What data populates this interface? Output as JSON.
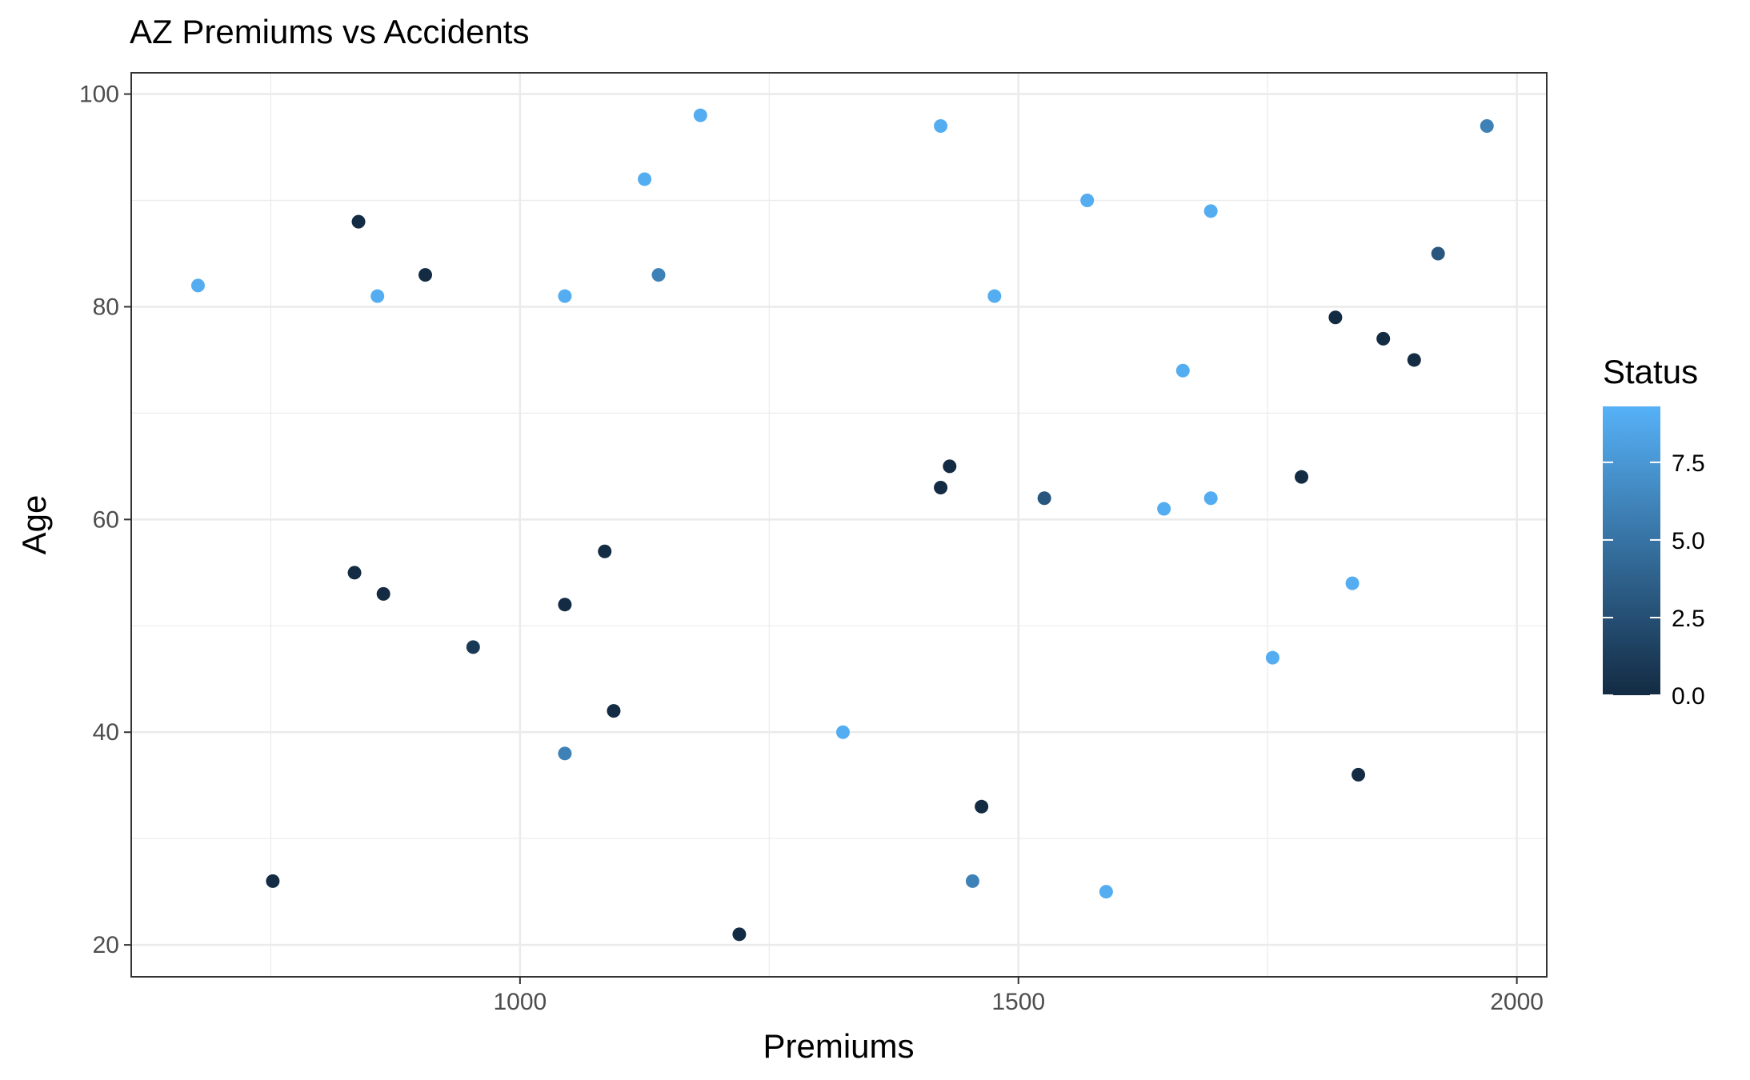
{
  "chart_data": {
    "type": "scatter",
    "title": "AZ Premiums vs Accidents",
    "xlabel": "Premiums",
    "ylabel": "Age",
    "xlim": [
      610,
      2030
    ],
    "ylim": [
      17,
      102
    ],
    "xticks": [
      1000,
      1500,
      2000
    ],
    "yticks": [
      20,
      40,
      60,
      80,
      100
    ],
    "xtick_labels": [
      "1000",
      "1500",
      "2000"
    ],
    "ytick_labels": [
      "20",
      "40",
      "60",
      "80",
      "100"
    ],
    "grid": true,
    "legend": {
      "title": "Status",
      "position": "right",
      "type": "colorbar",
      "range": [
        0,
        9.3
      ],
      "ticks": [
        0,
        2.5,
        5,
        7.5
      ],
      "tick_labels": [
        "0.0",
        "2.5",
        "5.0",
        "7.5"
      ],
      "color_low": "#132B43",
      "color_high": "#56B1F7"
    },
    "points": [
      {
        "x": 677,
        "y": 82,
        "status": 9
      },
      {
        "x": 752,
        "y": 26,
        "status": 0
      },
      {
        "x": 834,
        "y": 55,
        "status": 0
      },
      {
        "x": 838,
        "y": 88,
        "status": 0
      },
      {
        "x": 857,
        "y": 81,
        "status": 9
      },
      {
        "x": 863,
        "y": 53,
        "status": 0
      },
      {
        "x": 905,
        "y": 83,
        "status": 0
      },
      {
        "x": 953,
        "y": 48,
        "status": 1
      },
      {
        "x": 1045,
        "y": 81,
        "status": 9
      },
      {
        "x": 1045,
        "y": 52,
        "status": 0
      },
      {
        "x": 1045,
        "y": 38,
        "status": 6
      },
      {
        "x": 1085,
        "y": 57,
        "status": 0
      },
      {
        "x": 1094,
        "y": 42,
        "status": 0
      },
      {
        "x": 1125,
        "y": 92,
        "status": 9
      },
      {
        "x": 1139,
        "y": 83,
        "status": 6
      },
      {
        "x": 1181,
        "y": 98,
        "status": 9
      },
      {
        "x": 1220,
        "y": 21,
        "status": 0
      },
      {
        "x": 1324,
        "y": 40,
        "status": 9
      },
      {
        "x": 1422,
        "y": 97,
        "status": 9
      },
      {
        "x": 1422,
        "y": 63,
        "status": 0
      },
      {
        "x": 1431,
        "y": 65,
        "status": 0
      },
      {
        "x": 1454,
        "y": 26,
        "status": 6
      },
      {
        "x": 1463,
        "y": 33,
        "status": 0
      },
      {
        "x": 1476,
        "y": 81,
        "status": 9
      },
      {
        "x": 1526,
        "y": 62,
        "status": 3
      },
      {
        "x": 1569,
        "y": 90,
        "status": 9
      },
      {
        "x": 1588,
        "y": 25,
        "status": 9
      },
      {
        "x": 1646,
        "y": 61,
        "status": 9
      },
      {
        "x": 1665,
        "y": 74,
        "status": 9
      },
      {
        "x": 1693,
        "y": 89,
        "status": 9
      },
      {
        "x": 1693,
        "y": 62,
        "status": 9
      },
      {
        "x": 1755,
        "y": 47,
        "status": 9
      },
      {
        "x": 1784,
        "y": 64,
        "status": 0
      },
      {
        "x": 1818,
        "y": 79,
        "status": 0
      },
      {
        "x": 1835,
        "y": 54,
        "status": 9
      },
      {
        "x": 1841,
        "y": 36,
        "status": 0
      },
      {
        "x": 1866,
        "y": 77,
        "status": 0
      },
      {
        "x": 1897,
        "y": 75,
        "status": 0
      },
      {
        "x": 1921,
        "y": 85,
        "status": 3
      },
      {
        "x": 1970,
        "y": 97,
        "status": 6
      }
    ]
  }
}
